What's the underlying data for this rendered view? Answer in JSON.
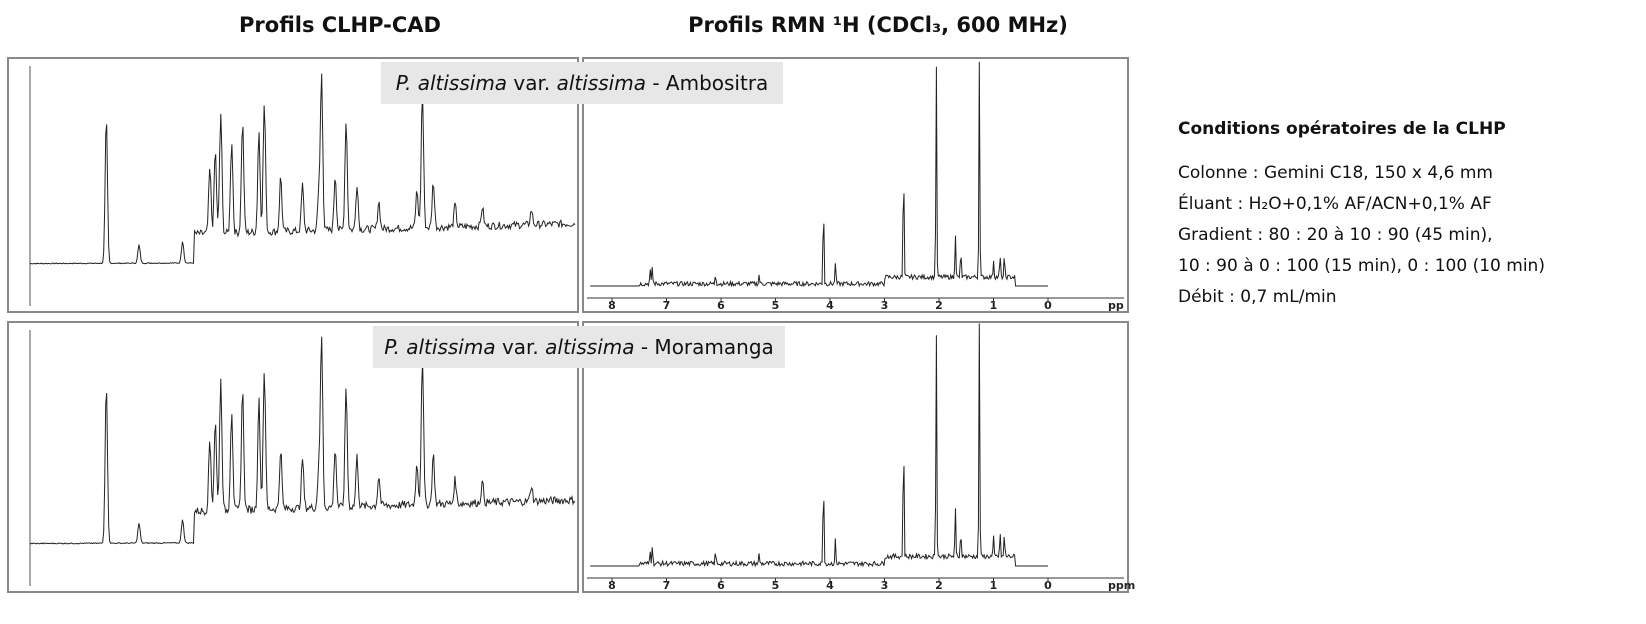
{
  "header": {
    "left_title": "Profils CLHP-CAD",
    "right_title": "Profils RMN ¹H (CDCl₃, 600 MHz)"
  },
  "panels": [
    {
      "label": {
        "species": "P. altissima",
        "var": "var.",
        "variety": "altissima",
        "site": "- Ambositra"
      },
      "nmr_ticks": [
        "8",
        "7",
        "6",
        "5",
        "4",
        "3",
        "2",
        "1",
        "0"
      ],
      "nmr_unit": "pp"
    },
    {
      "label": {
        "species": "P. altissima",
        "var": "var.",
        "variety": "altissima",
        "site": "- Moramanga"
      },
      "nmr_ticks": [
        "8",
        "7",
        "6",
        "5",
        "4",
        "3",
        "2",
        "1",
        "0"
      ],
      "nmr_unit": "ppm"
    }
  ],
  "conditions": {
    "title": "Conditions opératoires de la CLHP",
    "lines": [
      "Colonne : Gemini C18, 150 x 4,6 mm",
      "Éluant : H₂O+0,1% AF/ACN+0,1% AF",
      "Gradient : 80 : 20 à 10 : 90 (45 min),",
      "10 : 90 à 0 : 100 (15 min), 0 : 100 (10 min)",
      "Débit : 0,7 mL/min"
    ]
  }
}
